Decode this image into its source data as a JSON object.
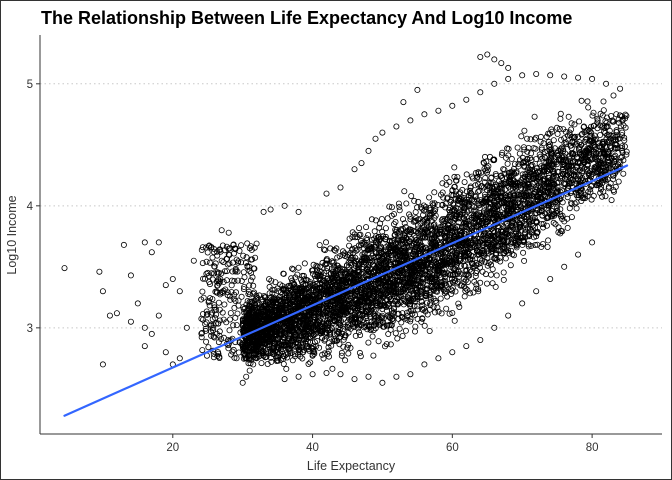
{
  "chart_data": {
    "type": "scatter",
    "title": "The Relationship Between Life Expectancy And Log10 Income",
    "xlabel": "Life Expectancy",
    "ylabel": "Log10 Income",
    "xlim": [
      1,
      90
    ],
    "ylim": [
      2.13,
      5.4
    ],
    "x_ticks": [
      20,
      40,
      60,
      80
    ],
    "x_tick_labels": [
      "20",
      "40",
      "60",
      "80"
    ],
    "y_ticks": [
      3,
      4,
      5
    ],
    "y_tick_labels": [
      "3",
      "4",
      "5"
    ],
    "grid": "horizontal-dotted",
    "point_style": "hollow-circle",
    "point_color": "#000000",
    "trend_line": {
      "color": "#3366FF",
      "x": [
        4.5,
        85
      ],
      "y": [
        2.28,
        4.33
      ]
    },
    "point_cloud": [
      [
        30,
        2.6,
        3.3
      ],
      [
        35,
        2.6,
        3.5
      ],
      [
        40,
        2.6,
        3.7
      ],
      [
        45,
        2.65,
        3.9
      ],
      [
        50,
        2.75,
        4.05
      ],
      [
        55,
        2.85,
        4.2
      ],
      [
        60,
        3.0,
        4.4
      ],
      [
        65,
        3.15,
        4.55
      ],
      [
        70,
        3.35,
        4.7
      ],
      [
        75,
        3.6,
        4.85
      ],
      [
        80,
        3.8,
        4.95
      ],
      [
        85,
        4.1,
        4.98
      ]
    ],
    "point_cloud_columns": [
      "life_expectancy",
      "log10_income_low",
      "log10_income_high"
    ],
    "outliers": [
      [
        4.5,
        3.49
      ],
      [
        9.5,
        3.46
      ],
      [
        10,
        3.3
      ],
      [
        13,
        3.68
      ],
      [
        14,
        3.43
      ],
      [
        16,
        3.7
      ],
      [
        17,
        3.62
      ],
      [
        18,
        3.7
      ],
      [
        15,
        3.2
      ],
      [
        14,
        3.05
      ],
      [
        16,
        2.85
      ],
      [
        17,
        2.95
      ],
      [
        18,
        3.1
      ],
      [
        19,
        2.8
      ],
      [
        20,
        2.7
      ],
      [
        19,
        3.35
      ],
      [
        20,
        3.4
      ],
      [
        22,
        3.0
      ],
      [
        21,
        2.75
      ],
      [
        11,
        3.1
      ],
      [
        12,
        3.12
      ],
      [
        16,
        3.0
      ],
      [
        10,
        2.7
      ],
      [
        21,
        3.3
      ],
      [
        23,
        3.55
      ]
    ],
    "upper_arc": [
      [
        56,
        4.75
      ],
      [
        58,
        4.78
      ],
      [
        60,
        4.82
      ],
      [
        62,
        4.87
      ],
      [
        64,
        4.93
      ],
      [
        66,
        5.0
      ],
      [
        68,
        5.04
      ],
      [
        70,
        5.07
      ],
      [
        72,
        5.08
      ],
      [
        74,
        5.07
      ],
      [
        76,
        5.06
      ],
      [
        78,
        5.05
      ],
      [
        80,
        5.04
      ],
      [
        82,
        5.0
      ],
      [
        84,
        4.96
      ],
      [
        64,
        5.22
      ],
      [
        65,
        5.24
      ],
      [
        66,
        5.2
      ],
      [
        67,
        5.17
      ],
      [
        68,
        5.13
      ],
      [
        48,
        4.45
      ],
      [
        47,
        4.35
      ],
      [
        46,
        4.3
      ],
      [
        49,
        4.55
      ],
      [
        50,
        4.6
      ],
      [
        52,
        4.65
      ],
      [
        54,
        4.7
      ],
      [
        44,
        4.15
      ],
      [
        42,
        4.1
      ],
      [
        38,
        3.95
      ],
      [
        36,
        4.0
      ],
      [
        34,
        3.97
      ],
      [
        33,
        3.95
      ],
      [
        55,
        4.95
      ],
      [
        53,
        4.85
      ]
    ],
    "lower_streak": [
      [
        30,
        2.55
      ],
      [
        30.5,
        2.6
      ],
      [
        31,
        2.65
      ],
      [
        31.5,
        2.7
      ],
      [
        32,
        2.75
      ],
      [
        36,
        2.58
      ],
      [
        38,
        2.6
      ],
      [
        40,
        2.62
      ],
      [
        42,
        2.63
      ],
      [
        44,
        2.62
      ],
      [
        46,
        2.58
      ],
      [
        48,
        2.6
      ],
      [
        50,
        2.55
      ],
      [
        52,
        2.6
      ],
      [
        54,
        2.62
      ],
      [
        56,
        2.7
      ],
      [
        58,
        2.75
      ],
      [
        60,
        2.8
      ],
      [
        62,
        2.85
      ],
      [
        64,
        2.9
      ],
      [
        66,
        3.0
      ],
      [
        68,
        3.1
      ],
      [
        70,
        3.2
      ],
      [
        72,
        3.3
      ],
      [
        74,
        3.4
      ],
      [
        76,
        3.5
      ],
      [
        78,
        3.6
      ],
      [
        80,
        3.7
      ],
      [
        26,
        3.5
      ],
      [
        27,
        3.55
      ],
      [
        28,
        3.6
      ],
      [
        29,
        3.65
      ],
      [
        25,
        3.45
      ],
      [
        27,
        3.8
      ],
      [
        28,
        3.78
      ]
    ]
  }
}
